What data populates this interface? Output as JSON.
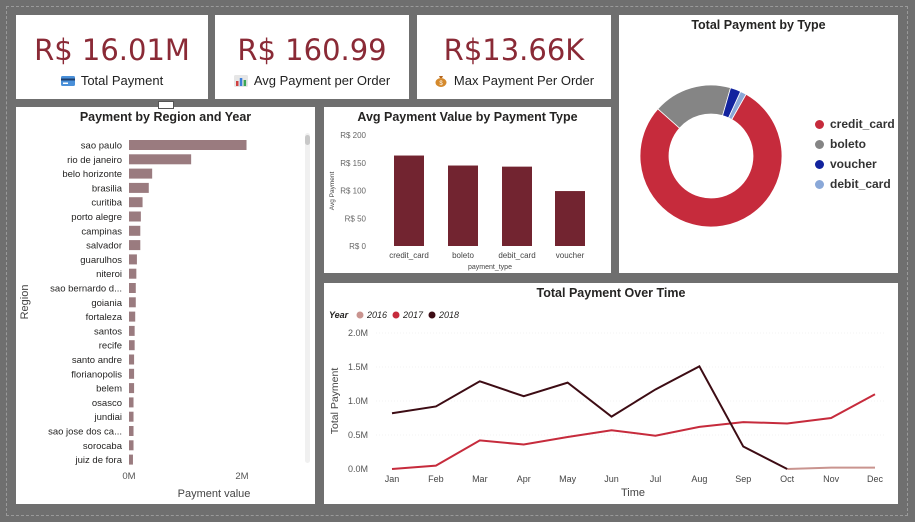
{
  "kpis": {
    "total_payment": {
      "value": "R$ 16.01M",
      "label": "Total Payment",
      "icon": "credit-card-icon"
    },
    "avg_payment": {
      "value": "R$ 160.99",
      "label": "Avg Payment per Order",
      "icon": "bar-chart-icon"
    },
    "max_payment": {
      "value": "R$13.66K",
      "label": "Max Payment Per Order",
      "icon": "money-bag-icon"
    }
  },
  "region_chart": {
    "title": "Payment by Region and Year",
    "ylabel": "Region",
    "xlabel": "Payment value",
    "xticks": [
      "0M",
      "2M"
    ]
  },
  "avg_type_chart": {
    "title": "Avg Payment Value by Payment Type",
    "ylabel": "Avg Payment",
    "xlabel": "payment_type",
    "yticks": [
      "R$ 200",
      "R$ 150",
      "R$ 100",
      "R$ 50",
      "R$ 0"
    ]
  },
  "donut_chart": {
    "title": "Total Payment by Type"
  },
  "time_chart": {
    "title": "Total Payment Over Time",
    "legend_title": "Year",
    "ylabel": "Total Payment",
    "xlabel": "Time",
    "yticks": [
      "2.0M",
      "1.5M",
      "1.0M",
      "0.5M",
      "0.0M"
    ]
  },
  "chart_data": [
    {
      "type": "bar",
      "orientation": "horizontal",
      "title": "Payment by Region and Year",
      "xlabel": "Payment value",
      "ylabel": "Region",
      "xlim": [
        0,
        2.5
      ],
      "categories": [
        "sao paulo",
        "rio de janeiro",
        "belo horizonte",
        "brasilia",
        "curitiba",
        "porto alegre",
        "campinas",
        "salvador",
        "guarulhos",
        "niteroi",
        "sao bernardo d...",
        "goiania",
        "fortaleza",
        "santos",
        "recife",
        "santo andre",
        "florianopolis",
        "belem",
        "osasco",
        "jundiai",
        "sao jose dos ca...",
        "sorocaba",
        "juiz de fora"
      ],
      "values": [
        2.08,
        1.1,
        0.41,
        0.35,
        0.24,
        0.21,
        0.2,
        0.2,
        0.14,
        0.13,
        0.12,
        0.12,
        0.11,
        0.1,
        0.1,
        0.09,
        0.09,
        0.09,
        0.08,
        0.08,
        0.08,
        0.08,
        0.07
      ],
      "color": "#9a7b7f"
    },
    {
      "type": "bar",
      "title": "Avg Payment Value by Payment Type",
      "xlabel": "payment_type",
      "ylabel": "Avg Payment",
      "ylim": [
        0,
        200
      ],
      "categories": [
        "credit_card",
        "boleto",
        "debit_card",
        "voucher"
      ],
      "values": [
        163,
        145,
        143,
        99
      ],
      "color": "#722430"
    },
    {
      "type": "pie",
      "title": "Total Payment by Type",
      "categories": [
        "credit_card",
        "boleto",
        "voucher",
        "debit_card"
      ],
      "values": [
        78.3,
        17.9,
        2.4,
        1.4
      ],
      "colors": [
        "#c62b3c",
        "#858585",
        "#12239e",
        "#8aa8d8"
      ]
    },
    {
      "type": "line",
      "title": "Total Payment Over Time",
      "xlabel": "Time",
      "ylabel": "Total Payment",
      "ylim": [
        0,
        2.0
      ],
      "categories": [
        "Jan",
        "Feb",
        "Mar",
        "Apr",
        "May",
        "Jun",
        "Jul",
        "Aug",
        "Sep",
        "Oct",
        "Nov",
        "Dec"
      ],
      "series": [
        {
          "name": "2016",
          "color": "#c9948f",
          "values": [
            null,
            null,
            null,
            null,
            null,
            null,
            null,
            null,
            null,
            0.0,
            0.02,
            0.02
          ]
        },
        {
          "name": "2017",
          "color": "#c62b3c",
          "values": [
            0.0,
            0.05,
            0.42,
            0.36,
            0.47,
            0.57,
            0.49,
            0.62,
            0.69,
            0.67,
            0.75,
            1.1
          ]
        },
        {
          "name": "2018",
          "color": "#3d0c14",
          "values": [
            0.82,
            0.92,
            1.29,
            1.07,
            1.27,
            0.77,
            1.17,
            1.51,
            0.33,
            0.0,
            null,
            null
          ]
        }
      ]
    }
  ]
}
